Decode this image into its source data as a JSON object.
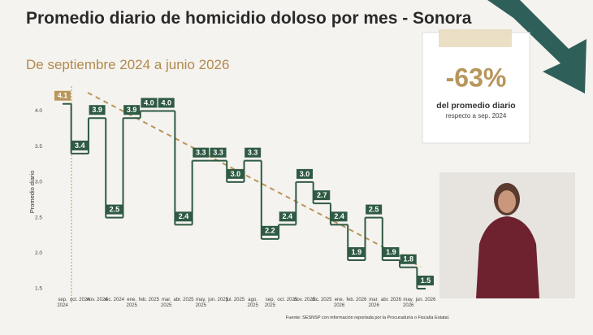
{
  "chart_data": {
    "type": "step",
    "title": "Promedio diario de homicidio doloso por mes - Sonora",
    "subtitle": "De septiembre 2024 a junio 2026",
    "y_label": "Promedio diario",
    "source": "Fuente: SESNSP con información reportada por la Procuraduría o Fiscalía Estatal.",
    "categories": [
      "sep. 2024",
      "oct. 2024",
      "nov. 2024",
      "dic. 2024",
      "ene. 2025",
      "feb. 2025",
      "mar. 2025",
      "abr. 2025",
      "may. 2025",
      "jun. 2025",
      "jul. 2025",
      "ago. 2025",
      "sep. 2025",
      "oct. 2025",
      "nov. 2025",
      "dic. 2025",
      "ene. 2026",
      "feb. 2026",
      "mar. 2026",
      "abr. 2026",
      "may. 2026",
      "jun. 2026"
    ],
    "values": [
      4.1,
      3.4,
      3.9,
      2.5,
      3.9,
      4.0,
      4.0,
      2.4,
      3.3,
      3.3,
      3.0,
      3.3,
      2.2,
      2.4,
      3.0,
      2.7,
      2.4,
      1.9,
      2.5,
      1.9,
      1.8,
      1.5
    ],
    "value_labels": [
      "4.1",
      "3.4",
      "3.9",
      "2.5",
      "3.9",
      "4.0",
      "4.0",
      "2.4",
      "3.3",
      "3.3",
      "3.0",
      "3.3",
      "2.2",
      "2.4",
      "3.0",
      "2.7",
      "2.4",
      "1.9",
      "2.5",
      "1.9",
      "1.8",
      "1.5"
    ],
    "color": "#2f5a43",
    "highlight_color": "#b8955a",
    "ylim": [
      1.42,
      4.28
    ],
    "yticks": [
      {
        "value": 4,
        "label": "4.0"
      },
      {
        "value": 3.5,
        "label": "3.5"
      },
      {
        "value": 3,
        "label": "3.0"
      },
      {
        "value": 2.5,
        "label": "2.5"
      },
      {
        "value": 2,
        "label": "2.0"
      },
      {
        "value": 1.5,
        "label": "1.5"
      }
    ]
  },
  "callout": {
    "value": "-63%",
    "line1": "del promedio diario",
    "line2": "respecto a sep. 2024"
  }
}
